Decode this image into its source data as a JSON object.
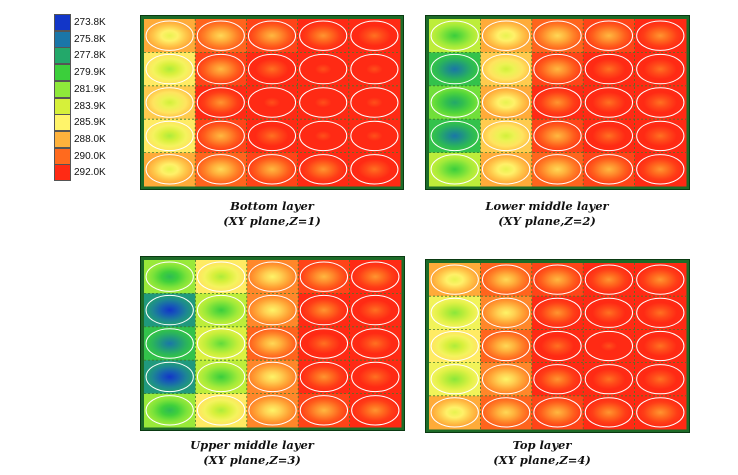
{
  "chart_data": {
    "type": "heatmap",
    "legend": {
      "ticks": [
        "273.8K",
        "275.8K",
        "277.8K",
        "279.9K",
        "281.9K",
        "283.9K",
        "285.9K",
        "288.0K",
        "290.0K",
        "292.0K"
      ],
      "values": [
        273.8,
        275.8,
        277.8,
        279.9,
        281.9,
        283.9,
        285.9,
        288.0,
        290.0,
        292.0
      ],
      "colors": [
        "#1236c8",
        "#1a76a8",
        "#23a86a",
        "#3bcf3b",
        "#8ee83a",
        "#d6f03a",
        "#fff46a",
        "#ffb23c",
        "#ff6a1e",
        "#ff2a14"
      ]
    },
    "panels": [
      {
        "caption_line1": "Bottom layer",
        "caption_line2": "(XY plane,Z=1)",
        "grid": [
          [
            286,
            288,
            289,
            290,
            291
          ],
          [
            284,
            289,
            291,
            292,
            292
          ],
          [
            285,
            290,
            292,
            292,
            292
          ],
          [
            284,
            289,
            291,
            292,
            292
          ],
          [
            286,
            288,
            289,
            290,
            291
          ]
        ]
      },
      {
        "caption_line1": "Lower middle layer",
        "caption_line2": "(XY plane,Z=2)",
        "grid": [
          [
            281,
            286,
            288,
            289,
            290
          ],
          [
            277,
            285,
            289,
            291,
            291
          ],
          [
            279,
            286,
            290,
            291,
            291
          ],
          [
            277,
            285,
            289,
            291,
            291
          ],
          [
            281,
            286,
            288,
            289,
            290
          ]
        ]
      },
      {
        "caption_line1": "Upper middle layer",
        "caption_line2": "(XY plane,Z=3)",
        "grid": [
          [
            280,
            284,
            287,
            289,
            290
          ],
          [
            275,
            281,
            287,
            290,
            291
          ],
          [
            277,
            282,
            288,
            291,
            291
          ],
          [
            275,
            281,
            287,
            290,
            291
          ],
          [
            280,
            284,
            287,
            289,
            290
          ]
        ]
      },
      {
        "caption_line1": "Top layer",
        "caption_line2": "(XY plane,Z=4)",
        "grid": [
          [
            286,
            288,
            289,
            290,
            290
          ],
          [
            283,
            287,
            290,
            291,
            291
          ],
          [
            284,
            288,
            291,
            292,
            291
          ],
          [
            283,
            287,
            290,
            291,
            291
          ],
          [
            286,
            288,
            289,
            290,
            290
          ]
        ]
      }
    ]
  }
}
